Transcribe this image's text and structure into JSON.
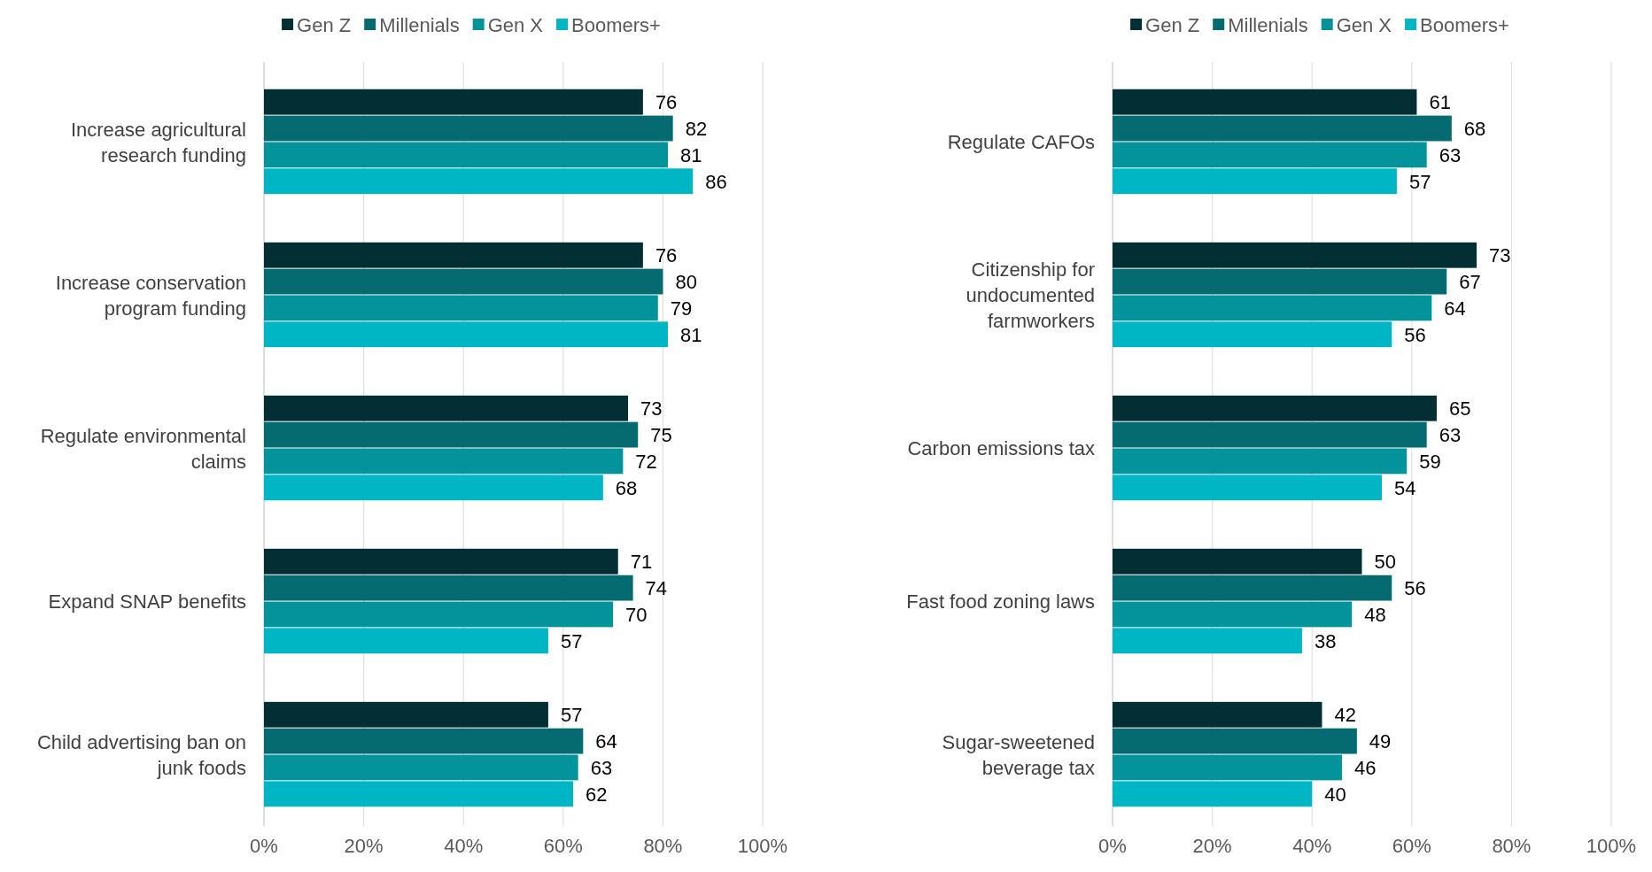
{
  "chart_data": [
    {
      "type": "bar",
      "orientation": "horizontal",
      "categories": [
        "Increase agricultural research funding",
        "Increase conservation program funding",
        "Regulate environmental claims",
        "Expand SNAP benefits",
        "Child advertising ban on junk foods"
      ],
      "series": [
        {
          "name": "Gen Z",
          "color": "#032e33",
          "values": [
            76,
            76,
            73,
            71,
            57
          ]
        },
        {
          "name": "Millenials",
          "color": "#056b70",
          "values": [
            82,
            80,
            75,
            74,
            64
          ]
        },
        {
          "name": "Gen X",
          "color": "#04939b",
          "values": [
            81,
            79,
            72,
            70,
            63
          ]
        },
        {
          "name": "Boomers+",
          "color": "#00b5c4",
          "values": [
            86,
            81,
            68,
            57,
            62
          ]
        }
      ],
      "xlim": [
        0,
        100
      ],
      "xticks": [
        {
          "value": 0,
          "label": "0%"
        },
        {
          "value": 20,
          "label": "20%"
        },
        {
          "value": 40,
          "label": "40%"
        },
        {
          "value": 60,
          "label": "60%"
        },
        {
          "value": 80,
          "label": "80%"
        },
        {
          "value": 100,
          "label": "100%"
        }
      ],
      "grid": "x",
      "legend": "top",
      "data_labels": true
    },
    {
      "type": "bar",
      "orientation": "horizontal",
      "categories": [
        "Regulate CAFOs",
        "Citizenship for undocumented farmworkers",
        "Carbon emissions tax",
        "Fast food zoning laws",
        "Sugar-sweetened beverage tax"
      ],
      "series": [
        {
          "name": "Gen Z",
          "color": "#032e33",
          "values": [
            61,
            73,
            65,
            50,
            42
          ]
        },
        {
          "name": "Millenials",
          "color": "#056b70",
          "values": [
            68,
            67,
            63,
            56,
            49
          ]
        },
        {
          "name": "Gen X",
          "color": "#04939b",
          "values": [
            63,
            64,
            59,
            48,
            46
          ]
        },
        {
          "name": "Boomers+",
          "color": "#00b5c4",
          "values": [
            57,
            56,
            54,
            38,
            40
          ]
        }
      ],
      "xlim": [
        0,
        100
      ],
      "xticks": [
        {
          "value": 0,
          "label": "0%"
        },
        {
          "value": 20,
          "label": "20%"
        },
        {
          "value": 40,
          "label": "40%"
        },
        {
          "value": 60,
          "label": "60%"
        },
        {
          "value": 80,
          "label": "80%"
        },
        {
          "value": 100,
          "label": "100%"
        }
      ],
      "grid": "x",
      "legend": "top",
      "data_labels": true
    }
  ]
}
